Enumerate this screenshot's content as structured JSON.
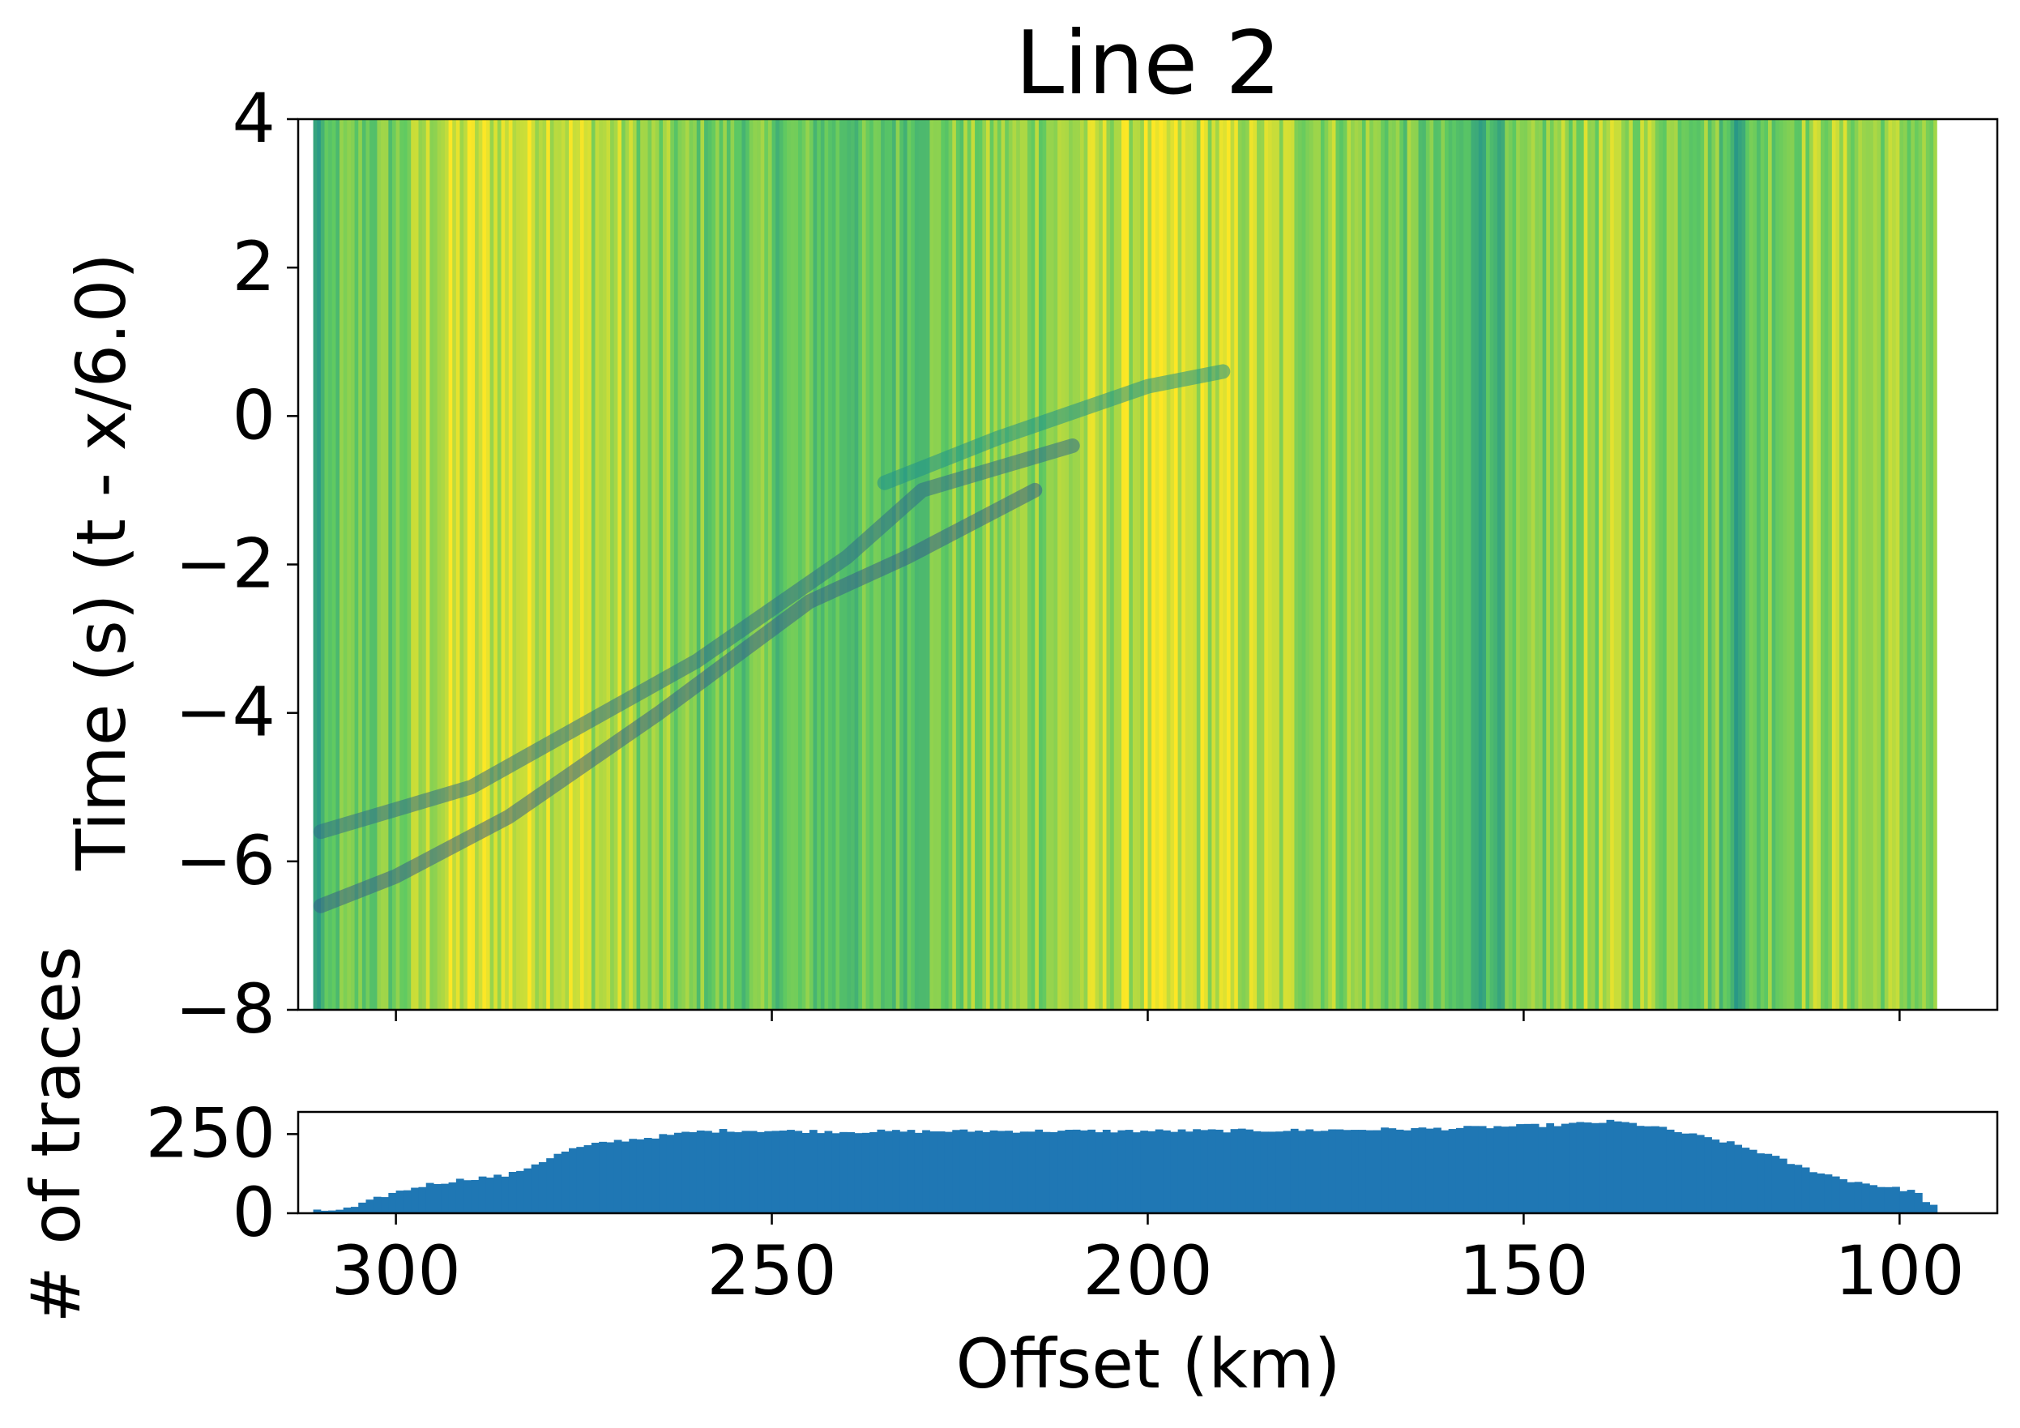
{
  "chart_data": [
    {
      "type": "heatmap",
      "title": "Line 2",
      "xlabel": "",
      "ylabel": "Time (s) (t - x/6.0)",
      "xlim": [
        313,
        87
      ],
      "ylim": [
        -8,
        4
      ],
      "x_inverted": true,
      "y_ticks": [
        "4",
        "2",
        "0",
        "−2",
        "−4",
        "−6",
        "−8"
      ],
      "y_tick_values": [
        4,
        2,
        0,
        -2,
        -4,
        -6,
        -8
      ],
      "x_tick_values": [
        300,
        250,
        200,
        150,
        100
      ],
      "data_extent_x": [
        311,
        95
      ],
      "colormap": "viridis",
      "colors": {
        "low": "#440154",
        "mid_low": "#21918c",
        "mid_high": "#5ec962",
        "high": "#fde725"
      },
      "background_intensity": [
        {
          "x": 311,
          "v": 0.55
        },
        {
          "x": 308,
          "v": 0.75
        },
        {
          "x": 300,
          "v": 0.78
        },
        {
          "x": 295,
          "v": 0.9
        },
        {
          "x": 280,
          "v": 0.95
        },
        {
          "x": 272,
          "v": 0.88
        },
        {
          "x": 265,
          "v": 0.8
        },
        {
          "x": 255,
          "v": 0.76
        },
        {
          "x": 245,
          "v": 0.74
        },
        {
          "x": 236,
          "v": 0.72
        },
        {
          "x": 225,
          "v": 0.8
        },
        {
          "x": 212,
          "v": 0.85
        },
        {
          "x": 200,
          "v": 0.92
        },
        {
          "x": 190,
          "v": 0.9
        },
        {
          "x": 180,
          "v": 0.86
        },
        {
          "x": 170,
          "v": 0.82
        },
        {
          "x": 163,
          "v": 0.74
        },
        {
          "x": 156,
          "v": 0.66
        },
        {
          "x": 152,
          "v": 0.72
        },
        {
          "x": 145,
          "v": 0.84
        },
        {
          "x": 135,
          "v": 0.86
        },
        {
          "x": 125,
          "v": 0.8
        },
        {
          "x": 122,
          "v": 0.64
        },
        {
          "x": 118,
          "v": 0.8
        },
        {
          "x": 110,
          "v": 0.86
        },
        {
          "x": 100,
          "v": 0.83
        },
        {
          "x": 95,
          "v": 0.78
        }
      ],
      "arrivals": [
        {
          "x": [
            310,
            290,
            260,
            240,
            230,
            220,
            210
          ],
          "y": [
            -5.6,
            -5.0,
            -3.3,
            -1.9,
            -1.0,
            -0.7,
            -0.4
          ],
          "v": 0.35
        },
        {
          "x": [
            310,
            300,
            285,
            265,
            245,
            232,
            215
          ],
          "y": [
            -6.6,
            -6.2,
            -5.4,
            -4.0,
            -2.5,
            -1.9,
            -1.0
          ],
          "v": 0.3
        },
        {
          "x": [
            235,
            220,
            200,
            190
          ],
          "y": [
            -0.9,
            -0.3,
            0.4,
            0.6
          ],
          "v": 0.5
        }
      ]
    },
    {
      "type": "bar",
      "xlabel": "Offset (km)",
      "ylabel": "# of traces",
      "xlim": [
        313,
        87
      ],
      "ylim": [
        0,
        320
      ],
      "x_ticks": [
        "300",
        "250",
        "200",
        "150",
        "100"
      ],
      "x_tick_values": [
        300,
        250,
        200,
        150,
        100
      ],
      "y_ticks": [
        "250",
        "0"
      ],
      "y_tick_values": [
        250,
        0
      ],
      "color": "#1f77b4",
      "bin_width_km": 1,
      "envelope": [
        {
          "x": 311,
          "y": 5
        },
        {
          "x": 306,
          "y": 15
        },
        {
          "x": 301,
          "y": 60
        },
        {
          "x": 296,
          "y": 90
        },
        {
          "x": 290,
          "y": 110
        },
        {
          "x": 285,
          "y": 120
        },
        {
          "x": 281,
          "y": 160
        },
        {
          "x": 277,
          "y": 200
        },
        {
          "x": 272,
          "y": 225
        },
        {
          "x": 266,
          "y": 240
        },
        {
          "x": 260,
          "y": 258
        },
        {
          "x": 255,
          "y": 262
        },
        {
          "x": 240,
          "y": 258
        },
        {
          "x": 220,
          "y": 260
        },
        {
          "x": 200,
          "y": 260
        },
        {
          "x": 180,
          "y": 262
        },
        {
          "x": 160,
          "y": 268
        },
        {
          "x": 145,
          "y": 280
        },
        {
          "x": 138,
          "y": 290
        },
        {
          "x": 133,
          "y": 275
        },
        {
          "x": 128,
          "y": 250
        },
        {
          "x": 123,
          "y": 225
        },
        {
          "x": 118,
          "y": 190
        },
        {
          "x": 113,
          "y": 145
        },
        {
          "x": 107,
          "y": 105
        },
        {
          "x": 101,
          "y": 80
        },
        {
          "x": 98,
          "y": 70
        },
        {
          "x": 96,
          "y": 30
        },
        {
          "x": 95,
          "y": 20
        }
      ]
    }
  ]
}
